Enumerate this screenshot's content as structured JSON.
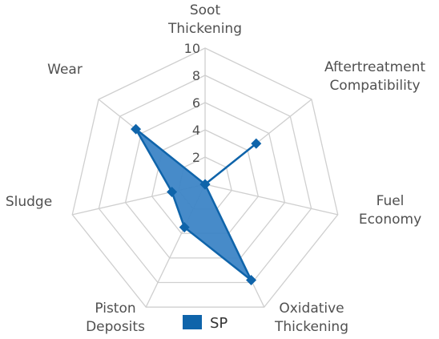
{
  "chart_data": {
    "type": "radar",
    "axes": [
      [
        "Soot",
        "Thickening"
      ],
      [
        "Aftertreatment",
        "Compatibility"
      ],
      [
        "Fuel",
        "Economy"
      ],
      [
        "Oxidative",
        "Thickening"
      ],
      [
        "Piston",
        "Deposits"
      ],
      [
        "Sludge"
      ],
      [
        "Wear"
      ]
    ],
    "rlim": [
      0,
      10
    ],
    "ticks": [
      "2",
      "4",
      "6",
      "8",
      "10"
    ],
    "series": [
      {
        "name": "SP",
        "color": "#0f64aa",
        "fill": "#3d85c6",
        "values": [
          0,
          4.8,
          0,
          7.8,
          3.5,
          2.5,
          6.5
        ]
      }
    ],
    "legend": "bottom-center",
    "grid": true
  }
}
